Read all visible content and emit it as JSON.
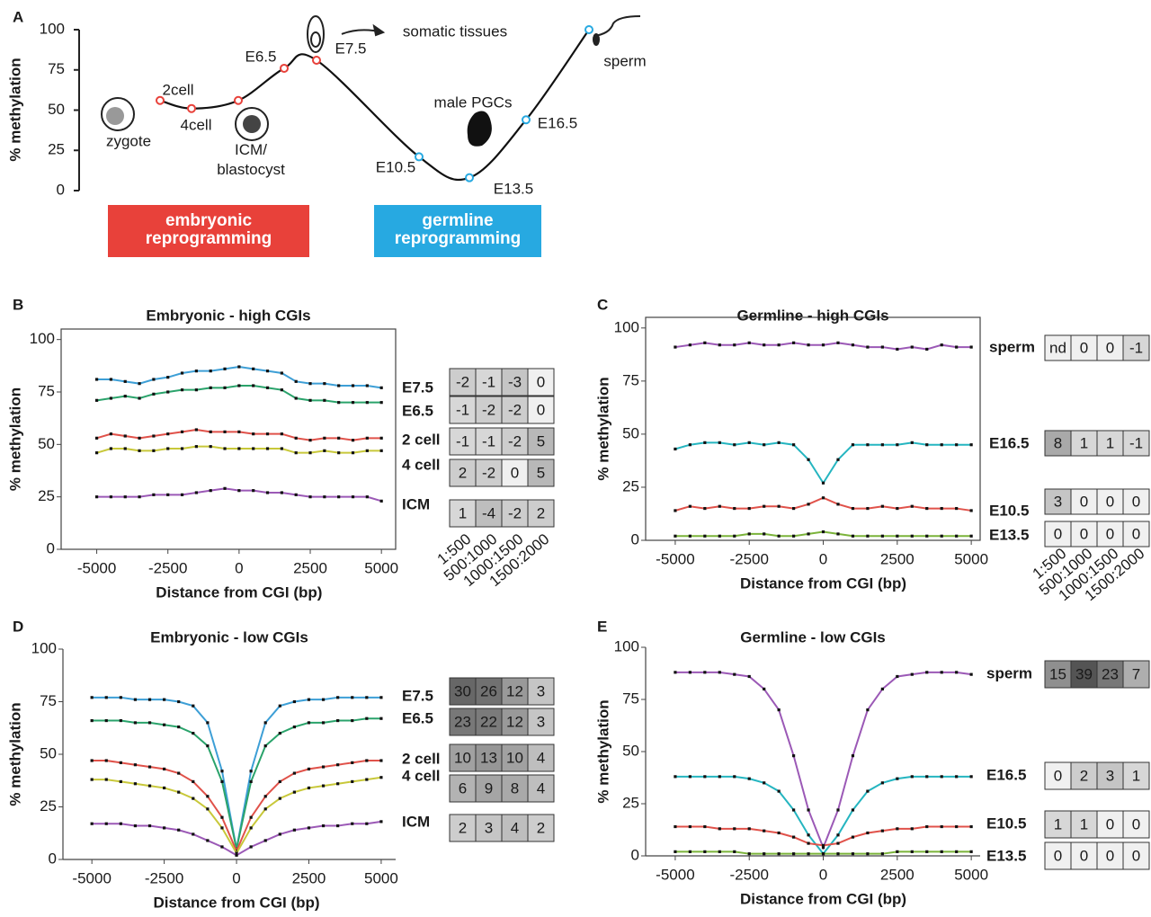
{
  "chart_data": [
    {
      "type": "line",
      "panel": "A",
      "ylabel": "% methylation",
      "categories": [
        "2cell",
        "4cell",
        "ICM/ blastocyst",
        "E6.5",
        "E7.5",
        "E10.5",
        "E13.5",
        "E16.5",
        "sperm"
      ],
      "values": [
        56,
        51,
        56,
        76,
        81,
        21,
        8,
        44,
        100
      ],
      "marker_colors": [
        "#e8413a",
        "#e8413a",
        "#e8413a",
        "#e8413a",
        "#e8413a",
        "#27a9e1",
        "#27a9e1",
        "#27a9e1",
        "#27a9e1"
      ],
      "ylim": [
        0,
        100
      ],
      "yticks": [
        0,
        25,
        50,
        75,
        100
      ],
      "annotations": [
        "zygote",
        "somatic tissues",
        "male PGCs"
      ],
      "phases": [
        {
          "label": "embryonic reprogramming",
          "color": "#e8413a"
        },
        {
          "label": "germline reprogramming",
          "color": "#27a9e1"
        }
      ]
    },
    {
      "type": "line",
      "panel": "B",
      "title": "Embryonic - high CGIs",
      "xlabel": "Distance from CGI (bp)",
      "ylabel": "% methylation",
      "frame": true,
      "xlim": [
        -6250,
        5500
      ],
      "ylim": [
        0,
        105
      ],
      "xticks": [
        -5000,
        -2500,
        0,
        2500,
        5000
      ],
      "yticks": [
        0,
        25,
        50,
        75,
        100
      ],
      "x": [
        -5000,
        -4500,
        -4000,
        -3500,
        -3000,
        -2500,
        -2000,
        -1500,
        -1000,
        -500,
        0,
        500,
        1000,
        1500,
        2000,
        2500,
        3000,
        3500,
        4000,
        4500,
        5000
      ],
      "table_columns": [
        "1:500",
        "500:1000",
        "1000:1500",
        "1500:2000"
      ],
      "series": [
        {
          "name": "E7.5",
          "color": "#3d9fd6",
          "values": [
            81,
            81,
            80,
            79,
            81,
            82,
            84,
            85,
            85,
            86,
            87,
            86,
            85,
            84,
            80,
            79,
            79,
            78,
            78,
            78,
            77
          ],
          "table": [
            -2,
            -1,
            -3,
            0
          ]
        },
        {
          "name": "E6.5",
          "color": "#2aa36b",
          "values": [
            71,
            72,
            73,
            72,
            74,
            75,
            76,
            76,
            77,
            77,
            78,
            78,
            77,
            76,
            72,
            71,
            71,
            70,
            70,
            70,
            70
          ],
          "table": [
            -1,
            -2,
            -2,
            0
          ]
        },
        {
          "name": "2 cell",
          "color": "#e0524a",
          "values": [
            53,
            55,
            54,
            53,
            54,
            55,
            56,
            57,
            56,
            56,
            56,
            55,
            55,
            55,
            53,
            52,
            53,
            53,
            52,
            53,
            53
          ],
          "table": [
            -1,
            -1,
            -2,
            5
          ]
        },
        {
          "name": "4 cell",
          "color": "#c8c83a",
          "values": [
            46,
            48,
            48,
            47,
            47,
            48,
            48,
            49,
            49,
            48,
            48,
            48,
            48,
            48,
            46,
            46,
            47,
            46,
            46,
            47,
            47
          ],
          "table": [
            2,
            -2,
            0,
            5
          ]
        },
        {
          "name": "ICM",
          "color": "#9b59b6",
          "values": [
            25,
            25,
            25,
            25,
            26,
            26,
            26,
            27,
            28,
            29,
            28,
            28,
            27,
            27,
            26,
            25,
            25,
            25,
            25,
            25,
            23
          ],
          "table": [
            1,
            -4,
            -2,
            2
          ]
        }
      ]
    },
    {
      "type": "line",
      "panel": "C",
      "title": "Germline - high CGIs",
      "xlabel": "Distance from CGI (bp)",
      "ylabel": "% methylation",
      "frame": true,
      "xlim": [
        -6000,
        5300
      ],
      "ylim": [
        0,
        105
      ],
      "xticks": [
        -5000,
        -2500,
        0,
        2500,
        5000
      ],
      "yticks": [
        0,
        25,
        50,
        75,
        100
      ],
      "x": [
        -5000,
        -4500,
        -4000,
        -3500,
        -3000,
        -2500,
        -2000,
        -1500,
        -1000,
        -500,
        0,
        500,
        1000,
        1500,
        2000,
        2500,
        3000,
        3500,
        4000,
        4500,
        5000
      ],
      "table_columns": [
        "1:500",
        "500:1000",
        "1000:1500",
        "1500:2000"
      ],
      "series": [
        {
          "name": "sperm",
          "color": "#9b59b6",
          "values": [
            91,
            92,
            93,
            92,
            92,
            93,
            92,
            92,
            93,
            92,
            92,
            93,
            92,
            91,
            91,
            90,
            91,
            90,
            92,
            91,
            91
          ],
          "table": [
            "nd",
            0,
            0,
            -1
          ]
        },
        {
          "name": "E16.5",
          "color": "#25b5c0",
          "values": [
            43,
            45,
            46,
            46,
            45,
            46,
            45,
            46,
            45,
            38,
            27,
            38,
            45,
            45,
            45,
            45,
            46,
            45,
            45,
            45,
            45
          ],
          "table": [
            8,
            1,
            1,
            -1
          ]
        },
        {
          "name": "E10.5",
          "color": "#e0524a",
          "values": [
            14,
            16,
            15,
            16,
            15,
            15,
            16,
            16,
            15,
            17,
            20,
            17,
            15,
            15,
            16,
            15,
            16,
            15,
            15,
            15,
            14
          ],
          "table": [
            3,
            0,
            0,
            0
          ]
        },
        {
          "name": "E13.5",
          "color": "#7bb33a",
          "values": [
            2,
            2,
            2,
            2,
            2,
            3,
            3,
            2,
            2,
            3,
            4,
            3,
            2,
            2,
            2,
            2,
            2,
            2,
            2,
            2,
            2
          ],
          "table": [
            0,
            0,
            0,
            0
          ]
        }
      ]
    },
    {
      "type": "line",
      "panel": "D",
      "title": "Embryonic - low CGIs",
      "xlabel": "Distance from CGI (bp)",
      "ylabel": "% methylation",
      "frame": false,
      "xlim": [
        -6000,
        5500
      ],
      "ylim": [
        0,
        100
      ],
      "xticks": [
        -5000,
        -2500,
        0,
        2500,
        5000
      ],
      "yticks": [
        0,
        25,
        50,
        75,
        100
      ],
      "x": [
        -5000,
        -4500,
        -4000,
        -3500,
        -3000,
        -2500,
        -2000,
        -1500,
        -1000,
        -500,
        0,
        500,
        1000,
        1500,
        2000,
        2500,
        3000,
        3500,
        4000,
        4500,
        5000
      ],
      "series": [
        {
          "name": "E7.5",
          "color": "#3d9fd6",
          "values": [
            77,
            77,
            77,
            76,
            76,
            76,
            75,
            73,
            65,
            42,
            5,
            42,
            65,
            73,
            75,
            76,
            76,
            77,
            77,
            77,
            77
          ],
          "table": [
            30,
            26,
            12,
            3
          ]
        },
        {
          "name": "E6.5",
          "color": "#2aa36b",
          "values": [
            66,
            66,
            66,
            65,
            65,
            64,
            63,
            60,
            54,
            37,
            5,
            37,
            54,
            60,
            63,
            65,
            65,
            66,
            66,
            67,
            67
          ],
          "table": [
            23,
            22,
            12,
            3
          ]
        },
        {
          "name": "2 cell",
          "color": "#e0524a",
          "values": [
            47,
            47,
            46,
            45,
            44,
            43,
            41,
            37,
            30,
            20,
            4,
            20,
            30,
            37,
            41,
            43,
            44,
            45,
            46,
            47,
            47
          ],
          "table": [
            10,
            13,
            10,
            4
          ]
        },
        {
          "name": "4 cell",
          "color": "#c8c83a",
          "values": [
            38,
            38,
            37,
            36,
            35,
            34,
            32,
            29,
            24,
            15,
            3,
            15,
            24,
            29,
            32,
            34,
            35,
            36,
            37,
            38,
            39
          ],
          "table": [
            6,
            9,
            8,
            4
          ]
        },
        {
          "name": "ICM",
          "color": "#9b59b6",
          "values": [
            17,
            17,
            17,
            16,
            16,
            15,
            14,
            12,
            9,
            6,
            2,
            6,
            9,
            12,
            14,
            15,
            16,
            16,
            17,
            17,
            18
          ],
          "table": [
            2,
            3,
            4,
            2
          ]
        }
      ]
    },
    {
      "type": "line",
      "panel": "E",
      "title": "Germline - low CGIs",
      "xlabel": "Distance from CGI (bp)",
      "ylabel": "% methylation",
      "frame": false,
      "xlim": [
        -6000,
        5300
      ],
      "ylim": [
        0,
        100
      ],
      "xticks": [
        -5000,
        -2500,
        0,
        2500,
        5000
      ],
      "yticks": [
        0,
        25,
        50,
        75,
        100
      ],
      "x": [
        -5000,
        -4500,
        -4000,
        -3500,
        -3000,
        -2500,
        -2000,
        -1500,
        -1000,
        -500,
        0,
        500,
        1000,
        1500,
        2000,
        2500,
        3000,
        3500,
        4000,
        4500,
        5000
      ],
      "series": [
        {
          "name": "sperm",
          "color": "#9b59b6",
          "values": [
            88,
            88,
            88,
            88,
            87,
            86,
            80,
            70,
            48,
            22,
            4,
            22,
            48,
            70,
            80,
            86,
            87,
            88,
            88,
            88,
            87
          ],
          "table": [
            15,
            39,
            23,
            7
          ]
        },
        {
          "name": "E16.5",
          "color": "#25b5c0",
          "values": [
            38,
            38,
            38,
            38,
            38,
            37,
            35,
            31,
            22,
            10,
            1,
            10,
            22,
            31,
            35,
            37,
            38,
            38,
            38,
            38,
            38
          ],
          "table": [
            0,
            2,
            3,
            1
          ]
        },
        {
          "name": "E10.5",
          "color": "#e0524a",
          "values": [
            14,
            14,
            14,
            13,
            13,
            13,
            12,
            11,
            9,
            6,
            5,
            6,
            9,
            11,
            12,
            13,
            13,
            14,
            14,
            14,
            14
          ],
          "table": [
            1,
            1,
            0,
            0
          ]
        },
        {
          "name": "E13.5",
          "color": "#7bb33a",
          "values": [
            2,
            2,
            2,
            2,
            2,
            1,
            1,
            1,
            1,
            1,
            1,
            1,
            1,
            1,
            1,
            2,
            2,
            2,
            2,
            2,
            2
          ],
          "table": [
            0,
            0,
            0,
            0
          ]
        }
      ]
    }
  ]
}
